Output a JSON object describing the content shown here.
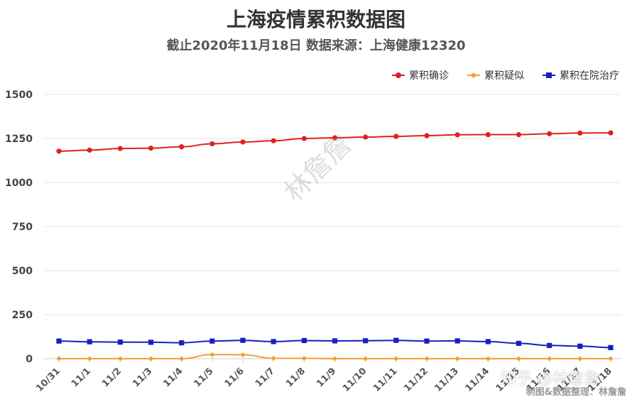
{
  "chart_data": {
    "type": "line",
    "title": "上海疫情累积数据图",
    "subtitle": "截止2020年11月18日 数据来源：上海健康12320",
    "categories": [
      "10/31",
      "11/1",
      "11/2",
      "11/3",
      "11/4",
      "11/5",
      "11/6",
      "11/7",
      "11/8",
      "11/9",
      "11/10",
      "11/11",
      "11/12",
      "11/13",
      "11/14",
      "11/15",
      "11/16",
      "11/17",
      "11/18"
    ],
    "ylim": [
      0,
      1500
    ],
    "yticks": [
      0,
      250,
      500,
      750,
      1000,
      1250,
      1500
    ],
    "ytick_labels": [
      "0",
      "250",
      "500",
      "750",
      "1000",
      "1250",
      "1500"
    ],
    "grid": true,
    "legend_position": "top-right",
    "series": [
      {
        "name": "累积确诊",
        "color": "#e02020",
        "marker": "circle",
        "values": [
          1178,
          1184,
          1193,
          1195,
          1203,
          1220,
          1230,
          1237,
          1250,
          1254,
          1258,
          1262,
          1266,
          1271,
          1272,
          1272,
          1277,
          1281,
          1282
        ]
      },
      {
        "name": "累积疑似",
        "color": "#f0a030",
        "marker": "diamond",
        "values": [
          0,
          0,
          0,
          0,
          0,
          23,
          22,
          2,
          2,
          0,
          0,
          0,
          0,
          0,
          0,
          0,
          0,
          0,
          0
        ]
      },
      {
        "name": "累积在院治疗",
        "color": "#1520c0",
        "marker": "square",
        "values": [
          100,
          96,
          94,
          93,
          90,
          100,
          104,
          97,
          103,
          101,
          102,
          104,
          100,
          101,
          97,
          87,
          75,
          71,
          63
        ]
      }
    ]
  },
  "watermark_text": "林詹詹",
  "watermark_zhihu": "知乎 @林詹詹",
  "credit_text": "制图&数据整理：林詹詹"
}
